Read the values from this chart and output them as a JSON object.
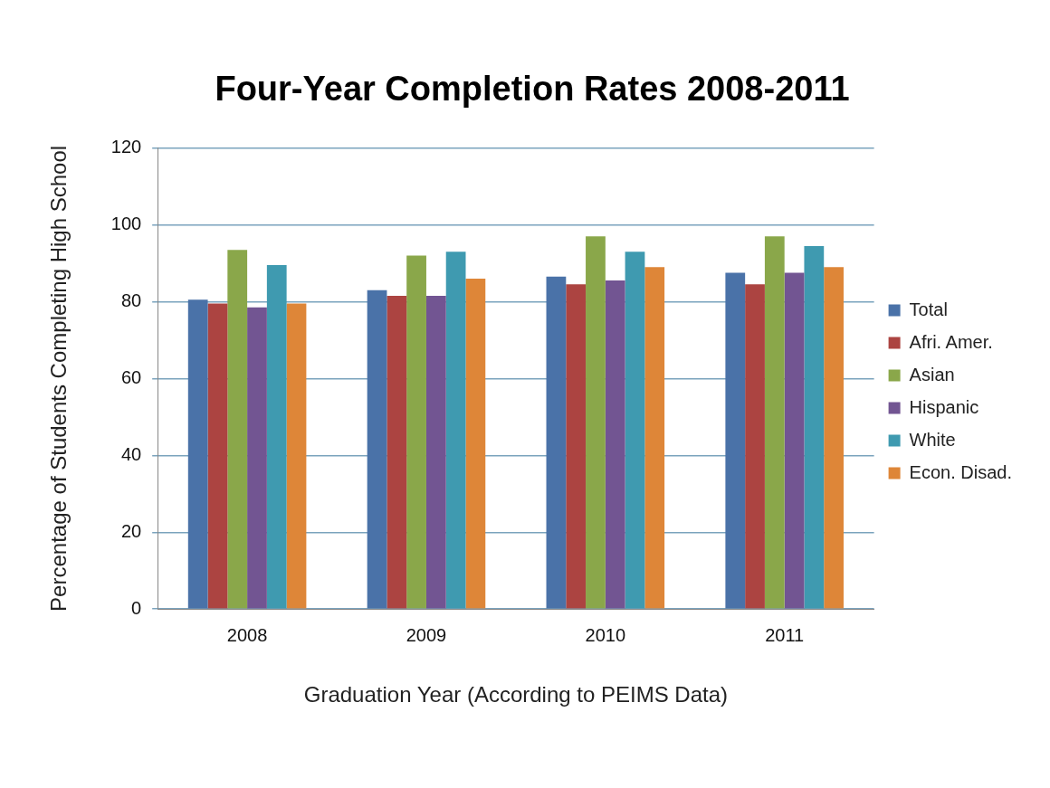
{
  "chart_data": {
    "type": "bar",
    "title": "Four-Year Completion Rates 2008-2011",
    "xlabel": "Graduation Year (According to PEIMS Data)",
    "ylabel": "Percentage of Students Completing High School",
    "categories": [
      "2008",
      "2009",
      "2010",
      "2011"
    ],
    "series": [
      {
        "name": "Total",
        "color": "#4a72a8",
        "values": [
          80.5,
          83,
          86.5,
          87.5
        ]
      },
      {
        "name": "Afri. Amer.",
        "color": "#ac4441",
        "values": [
          79.5,
          81.5,
          84.5,
          84.5
        ]
      },
      {
        "name": "Asian",
        "color": "#8aa74a",
        "values": [
          93.5,
          92,
          97,
          97
        ]
      },
      {
        "name": "Hispanic",
        "color": "#725592",
        "values": [
          78.5,
          81.5,
          85.5,
          87.5
        ]
      },
      {
        "name": "White",
        "color": "#3f9ab0",
        "values": [
          89.5,
          93,
          93,
          94.5
        ]
      },
      {
        "name": "Econ. Disad.",
        "color": "#de8638",
        "values": [
          79.5,
          86,
          89,
          89
        ]
      }
    ],
    "ylim": [
      0,
      120
    ],
    "yticks": [
      0,
      20,
      40,
      60,
      80,
      100,
      120
    ],
    "grid": "y",
    "legend": "right"
  }
}
